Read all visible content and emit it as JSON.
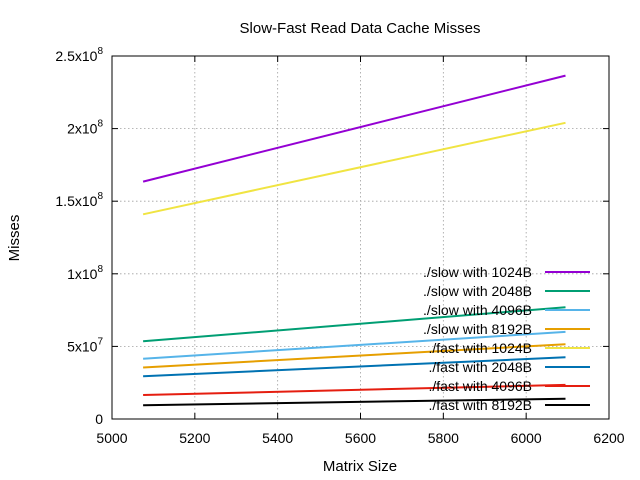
{
  "chart_data": {
    "type": "line",
    "title": "Slow-Fast Read Data Cache Misses",
    "xlabel": "Matrix Size",
    "ylabel": "Misses",
    "xlim": [
      5000,
      6200
    ],
    "ylim": [
      0,
      250000000
    ],
    "x_ticks": [
      5000,
      5200,
      5400,
      5600,
      5800,
      6000,
      6200
    ],
    "y_ticks": [
      {
        "value": 0,
        "mantissa": "0",
        "exponent": ""
      },
      {
        "value": 50000000,
        "mantissa": "5x10",
        "exponent": "7"
      },
      {
        "value": 100000000,
        "mantissa": "1x10",
        "exponent": "8"
      },
      {
        "value": 150000000,
        "mantissa": "1.5x10",
        "exponent": "8"
      },
      {
        "value": 200000000,
        "mantissa": "2x10",
        "exponent": "8"
      },
      {
        "value": 250000000,
        "mantissa": "2.5x10",
        "exponent": "8"
      }
    ],
    "grid": true,
    "legend_position": "lower-right inside plot",
    "series": [
      {
        "name": "./slow with 1024B",
        "color": "#9400d3",
        "x": [
          5075,
          6095
        ],
        "y": [
          163500000,
          236500000
        ]
      },
      {
        "name": "./slow with 2048B",
        "color": "#009e73",
        "x": [
          5075,
          6095
        ],
        "y": [
          53500000,
          77000000
        ]
      },
      {
        "name": "./slow with 4096B",
        "color": "#56b4e9",
        "x": [
          5075,
          6095
        ],
        "y": [
          41500000,
          60000000
        ]
      },
      {
        "name": "./slow with 8192B",
        "color": "#e69f00",
        "x": [
          5075,
          6095
        ],
        "y": [
          35500000,
          51500000
        ]
      },
      {
        "name": "./fast with 1024B",
        "color": "#f0e442",
        "x": [
          5075,
          6095
        ],
        "y": [
          141000000,
          204000000
        ]
      },
      {
        "name": "./fast with 2048B",
        "color": "#0072b2",
        "x": [
          5075,
          6095
        ],
        "y": [
          29500000,
          42500000
        ]
      },
      {
        "name": "./fast with 4096B",
        "color": "#e51e10",
        "x": [
          5075,
          6095
        ],
        "y": [
          16500000,
          23500000
        ]
      },
      {
        "name": "./fast with 8192B",
        "color": "#000000",
        "x": [
          5075,
          6095
        ],
        "y": [
          9500000,
          14000000
        ]
      }
    ]
  }
}
